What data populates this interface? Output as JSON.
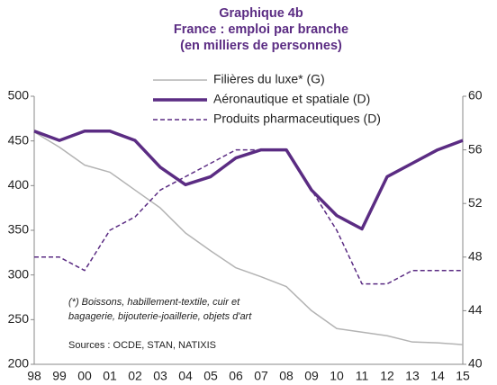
{
  "chart_data": {
    "type": "line",
    "title": "Graphique 4b",
    "subtitle": [
      "France : emploi  par branche",
      "(en milliers de personnes)"
    ],
    "categories": [
      "98",
      "99",
      "00",
      "01",
      "02",
      "03",
      "04",
      "05",
      "06",
      "07",
      "08",
      "09",
      "10",
      "11",
      "12",
      "13",
      "14",
      "15"
    ],
    "series": [
      {
        "name": "Filières du luxe* (G)",
        "color": "#b3b3b3",
        "width": 1.5,
        "dash": false,
        "axis": "y",
        "values": [
          460,
          443,
          423,
          415,
          395,
          375,
          347,
          327,
          308,
          298,
          287,
          260,
          240,
          236,
          232,
          225,
          224,
          222
        ]
      },
      {
        "name": "Aéronautique et spatiale (D)",
        "color": "#5b2c83",
        "width": 3.5,
        "dash": false,
        "axis": "y2",
        "values": [
          57.4,
          56.7,
          57.4,
          57.4,
          56.7,
          54.7,
          53.4,
          54,
          55.4,
          56,
          56,
          53,
          51.1,
          50.1,
          54,
          55,
          56,
          56.7
        ]
      },
      {
        "name": "Produits pharmaceutiques (D)",
        "color": "#5b2c83",
        "width": 1.5,
        "dash": true,
        "axis": "y2",
        "values": [
          48,
          48,
          47,
          50,
          51,
          53,
          54,
          55,
          56,
          56,
          56,
          53,
          50,
          46,
          46,
          47,
          47,
          47
        ]
      }
    ],
    "ylim": [
      200,
      500
    ],
    "yticks": [
      200,
      250,
      300,
      350,
      400,
      450,
      500
    ],
    "y2lim": [
      40,
      60
    ],
    "y2ticks": [
      40,
      44,
      48,
      52,
      56,
      60
    ],
    "annotations": [
      "(*) Boissons, habillement-textile, cuir et",
      "bagagerie, bijouterie-joaillerie, objets d'art",
      "Sources : OCDE, STAN, NATIXIS"
    ],
    "grid": false
  }
}
